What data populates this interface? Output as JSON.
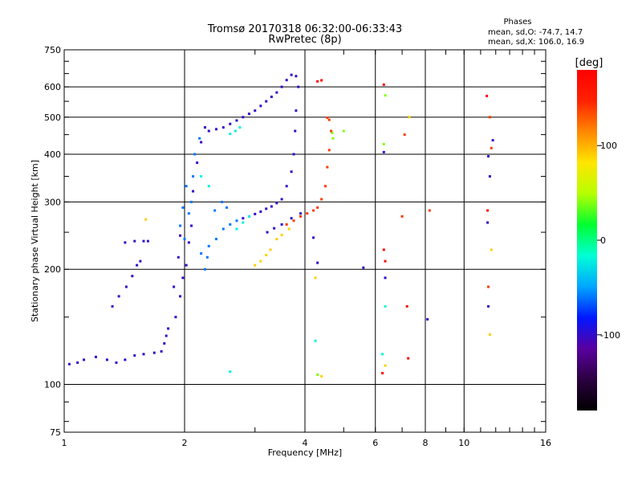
{
  "chart_data": {
    "type": "scatter",
    "title": "Tromsø 20170318 06:32:00-06:33:43",
    "subtitle": "RwPretec (8p)",
    "stats": {
      "heading": "Phases",
      "line1": "mean, sd,O: -74.7, 14.7",
      "line2": "mean, sd,X: 106.0, 16.9"
    },
    "xlabel": "Frequency [MHz]",
    "ylabel": "Stationary phase Virtual Height [km]",
    "x_scale": "log",
    "y_scale": "log",
    "xlim": [
      1,
      16
    ],
    "ylim": [
      75,
      750
    ],
    "x_ticks": [
      1,
      2,
      4,
      6,
      8,
      10,
      16
    ],
    "y_ticks": [
      75,
      100,
      200,
      300,
      400,
      500,
      600,
      750
    ],
    "x_grid": [
      2,
      4,
      6,
      8,
      10
    ],
    "y_grid": [
      100,
      200,
      300,
      400,
      500,
      600
    ],
    "grid": true,
    "colorbar": {
      "label": "[deg]",
      "range": [
        -180,
        180
      ],
      "ticks": [
        100,
        0,
        -100
      ],
      "colors": [
        "#000000",
        "#2b0040",
        "#5a00a0",
        "#0018ff",
        "#00a6ff",
        "#00ffd5",
        "#00ff30",
        "#b6ff00",
        "#ffe600",
        "#ff8800",
        "#ff2200",
        "#ff0000"
      ]
    },
    "series": [
      {
        "color_value": -100,
        "points": [
          [
            1.03,
            113
          ],
          [
            1.08,
            114
          ],
          [
            1.12,
            116
          ],
          [
            1.2,
            118
          ],
          [
            1.28,
            116
          ],
          [
            1.35,
            114
          ],
          [
            1.42,
            116
          ],
          [
            1.5,
            119
          ],
          [
            1.58,
            120
          ],
          [
            1.68,
            121
          ],
          [
            1.75,
            122
          ],
          [
            1.78,
            128
          ],
          [
            1.8,
            134
          ],
          [
            1.82,
            140
          ],
          [
            1.32,
            160
          ],
          [
            1.37,
            170
          ],
          [
            1.43,
            180
          ],
          [
            1.48,
            192
          ],
          [
            1.52,
            205
          ],
          [
            1.55,
            210
          ],
          [
            1.42,
            235
          ],
          [
            1.5,
            237
          ],
          [
            1.58,
            237
          ],
          [
            1.62,
            237
          ],
          [
            1.9,
            150
          ],
          [
            1.95,
            170
          ],
          [
            1.98,
            190
          ],
          [
            2.02,
            205
          ],
          [
            2.05,
            235
          ],
          [
            2.08,
            260
          ],
          [
            1.88,
            180
          ],
          [
            1.93,
            215
          ],
          [
            1.95,
            245
          ],
          [
            2.1,
            320
          ],
          [
            2.15,
            380
          ],
          [
            2.2,
            430
          ],
          [
            2.25,
            470
          ],
          [
            2.3,
            460
          ],
          [
            2.4,
            465
          ],
          [
            2.5,
            470
          ],
          [
            2.6,
            480
          ],
          [
            2.7,
            490
          ],
          [
            2.8,
            500
          ],
          [
            2.9,
            510
          ],
          [
            3.0,
            520
          ],
          [
            3.1,
            535
          ],
          [
            3.2,
            550
          ],
          [
            3.3,
            565
          ],
          [
            3.4,
            580
          ],
          [
            3.5,
            600
          ],
          [
            3.6,
            625
          ],
          [
            3.7,
            645
          ],
          [
            3.8,
            640
          ],
          [
            3.85,
            600
          ],
          [
            3.8,
            520
          ],
          [
            3.78,
            460
          ],
          [
            3.75,
            400
          ],
          [
            3.7,
            360
          ],
          [
            3.6,
            330
          ],
          [
            3.5,
            305
          ],
          [
            3.4,
            298
          ],
          [
            3.3,
            292
          ],
          [
            3.2,
            288
          ],
          [
            3.1,
            283
          ],
          [
            3.0,
            279
          ],
          [
            2.9,
            275
          ],
          [
            2.8,
            272
          ],
          [
            3.22,
            250
          ],
          [
            3.35,
            256
          ],
          [
            3.5,
            262
          ],
          [
            3.7,
            272
          ],
          [
            3.9,
            280
          ],
          [
            4.2,
            242
          ],
          [
            4.3,
            208
          ],
          [
            5.6,
            202
          ],
          [
            6.35,
            190
          ],
          [
            8.1,
            148
          ],
          [
            11.5,
            395
          ],
          [
            11.6,
            350
          ],
          [
            11.45,
            265
          ],
          [
            11.5,
            160
          ],
          [
            11.8,
            435
          ],
          [
            6.3,
            405
          ]
        ]
      },
      {
        "color_value": -60,
        "points": [
          [
            2.02,
            330
          ],
          [
            2.05,
            280
          ],
          [
            2.08,
            300
          ],
          [
            2.1,
            350
          ],
          [
            2.12,
            400
          ],
          [
            2.18,
            440
          ],
          [
            1.95,
            260
          ],
          [
            1.98,
            290
          ],
          [
            2.0,
            240
          ],
          [
            2.2,
            220
          ],
          [
            2.3,
            230
          ],
          [
            2.4,
            240
          ],
          [
            2.5,
            255
          ],
          [
            2.6,
            262
          ],
          [
            2.7,
            268
          ],
          [
            2.38,
            285
          ],
          [
            2.48,
            300
          ],
          [
            2.55,
            290
          ],
          [
            2.25,
            200
          ],
          [
            2.28,
            215
          ]
        ]
      },
      {
        "color_value": -20,
        "points": [
          [
            2.7,
            255
          ],
          [
            2.8,
            265
          ],
          [
            2.9,
            275
          ],
          [
            2.6,
            452
          ],
          [
            2.68,
            460
          ],
          [
            2.75,
            470
          ],
          [
            2.6,
            108
          ],
          [
            2.2,
            350
          ],
          [
            2.3,
            330
          ],
          [
            6.35,
            160
          ],
          [
            4.25,
            130
          ],
          [
            6.25,
            120
          ]
        ]
      },
      {
        "color_value": 40,
        "points": [
          [
            4.3,
            106
          ],
          [
            6.3,
            425
          ],
          [
            6.35,
            570
          ],
          [
            4.7,
            440
          ],
          [
            4.68,
            455
          ],
          [
            5.0,
            460
          ]
        ]
      },
      {
        "color_value": 90,
        "points": [
          [
            3.0,
            205
          ],
          [
            3.1,
            210
          ],
          [
            3.2,
            218
          ],
          [
            3.28,
            225
          ],
          [
            3.4,
            240
          ],
          [
            3.5,
            246
          ],
          [
            3.65,
            255
          ],
          [
            4.25,
            190
          ],
          [
            4.4,
            105
          ],
          [
            6.35,
            112
          ],
          [
            7.3,
            500
          ],
          [
            11.6,
            135
          ],
          [
            11.7,
            225
          ],
          [
            1.6,
            270
          ]
        ]
      },
      {
        "color_value": 140,
        "points": [
          [
            3.6,
            262
          ],
          [
            3.75,
            268
          ],
          [
            3.9,
            275
          ],
          [
            4.05,
            280
          ],
          [
            4.2,
            285
          ],
          [
            4.3,
            290
          ],
          [
            4.4,
            305
          ],
          [
            4.5,
            330
          ],
          [
            4.55,
            370
          ],
          [
            4.6,
            410
          ],
          [
            4.65,
            460
          ],
          [
            4.6,
            492
          ],
          [
            4.55,
            498
          ],
          [
            7.0,
            275
          ],
          [
            7.1,
            450
          ],
          [
            8.2,
            285
          ],
          [
            11.5,
            180
          ],
          [
            11.6,
            500
          ],
          [
            11.7,
            415
          ]
        ]
      },
      {
        "color_value": 175,
        "points": [
          [
            4.3,
            620
          ],
          [
            4.4,
            624
          ],
          [
            6.3,
            225
          ],
          [
            6.35,
            210
          ],
          [
            7.2,
            160
          ],
          [
            7.25,
            117
          ],
          [
            11.4,
            568
          ],
          [
            11.45,
            285
          ],
          [
            6.25,
            107
          ],
          [
            6.3,
            608
          ]
        ]
      }
    ]
  }
}
